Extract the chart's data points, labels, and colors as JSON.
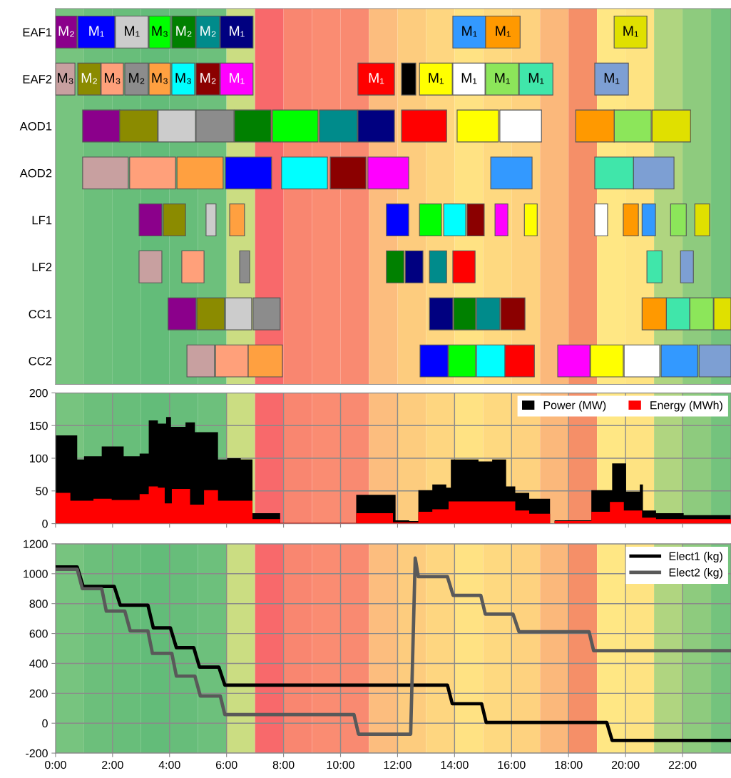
{
  "chart_data": [
    {
      "type": "bar",
      "orientation": "horizontal",
      "tick_labels": "y",
      "xlim": [
        0,
        23.7
      ],
      "categories": [
        "EAF1",
        "EAF2",
        "AOD1",
        "AOD2",
        "LF1",
        "LF2",
        "CC1",
        "CC2"
      ],
      "series": [
        {
          "color": "#8b008b",
          "base": [
            0,
            null,
            0.95,
            null,
            2.93,
            null,
            3.95,
            null
          ],
          "values": [
            0.75,
            null,
            1.3,
            null,
            0.8,
            null,
            0.98,
            null
          ],
          "value_labels": [
            "M₂",
            null,
            null,
            null,
            null,
            null,
            null,
            null
          ]
        },
        {
          "color": "#0000ff",
          "base": [
            0.78,
            null,
            null,
            5.96,
            11.61,
            null,
            null,
            12.79
          ],
          "values": [
            1.3,
            null,
            null,
            1.62,
            0.78,
            null,
            null,
            0.98
          ],
          "value_labels": [
            "M₁",
            null,
            null,
            null,
            null,
            null,
            null,
            null
          ]
        },
        {
          "color": "#cccccc",
          "base": [
            2.1,
            null,
            3.6,
            null,
            5.28,
            null,
            5.96,
            null
          ],
          "values": [
            1.15,
            null,
            1.31,
            null,
            0.35,
            null,
            0.92,
            null
          ],
          "value_labels": [
            "M₁",
            null,
            null,
            null,
            null,
            null,
            null,
            null
          ]
        },
        {
          "color": "#00ff00",
          "base": [
            3.28,
            null,
            7.61,
            null,
            12.77,
            null,
            null,
            13.79
          ],
          "values": [
            0.75,
            null,
            1.6,
            null,
            0.77,
            null,
            null,
            0.95
          ],
          "value_labels": [
            "M₃",
            null,
            null,
            null,
            null,
            null,
            null,
            null
          ]
        },
        {
          "color": "#008000",
          "base": [
            4.08,
            null,
            6.28,
            null,
            null,
            11.61,
            13.97,
            null
          ],
          "values": [
            0.83,
            null,
            1.28,
            null,
            null,
            0.61,
            0.77,
            null
          ],
          "value_labels": [
            "M₂",
            null,
            null,
            null,
            null,
            null,
            null,
            null
          ]
        },
        {
          "color": "#008b8b",
          "base": [
            4.93,
            null,
            9.26,
            null,
            null,
            13.12,
            14.77,
            null
          ],
          "values": [
            0.83,
            null,
            1.33,
            null,
            null,
            0.6,
            0.82,
            null
          ],
          "value_labels": [
            "M₂",
            null,
            null,
            null,
            null,
            null,
            null,
            null
          ]
        },
        {
          "color": "#000080",
          "base": [
            5.78,
            null,
            10.61,
            null,
            null,
            12.27,
            13.12,
            null
          ],
          "values": [
            1.15,
            null,
            1.28,
            null,
            null,
            0.62,
            0.82,
            null
          ],
          "value_labels": [
            "M₁",
            null,
            null,
            null,
            null,
            null,
            null,
            null
          ]
        },
        {
          "color": "#c8a0a0",
          "base": [
            null,
            0,
            null,
            0.95,
            null,
            2.93,
            null,
            4.61
          ],
          "values": [
            null,
            0.68,
            null,
            1.6,
            null,
            0.8,
            null,
            0.97
          ],
          "value_labels": [
            null,
            "M₃",
            null,
            null,
            null,
            null,
            null,
            null
          ]
        },
        {
          "color": "#8b8b00",
          "base": [
            null,
            0.78,
            2.25,
            null,
            3.78,
            null,
            4.96,
            null
          ],
          "values": [
            null,
            0.8,
            1.33,
            null,
            0.78,
            null,
            0.97,
            null
          ],
          "value_labels": [
            null,
            "M₂",
            null,
            null,
            null,
            null,
            null,
            null
          ]
        },
        {
          "color": "#ffa07a",
          "base": [
            null,
            1.6,
            null,
            2.6,
            null,
            4.43,
            null,
            5.61
          ],
          "values": [
            null,
            0.78,
            null,
            1.61,
            null,
            0.78,
            null,
            1.15
          ],
          "value_labels": [
            null,
            "M₃",
            null,
            null,
            null,
            null,
            null,
            null
          ]
        },
        {
          "color": "#8c8c8c",
          "base": [
            null,
            2.43,
            4.93,
            null,
            null,
            6.46,
            6.93,
            null
          ],
          "values": [
            null,
            0.82,
            1.33,
            null,
            null,
            0.35,
            0.95,
            null
          ],
          "value_labels": [
            null,
            "M₂",
            null,
            null,
            null,
            null,
            null,
            null
          ]
        },
        {
          "color": "#ffa040",
          "base": [
            null,
            3.28,
            null,
            4.26,
            6.11,
            null,
            null,
            6.76
          ],
          "values": [
            null,
            0.75,
            null,
            1.62,
            0.52,
            null,
            null,
            1.2
          ],
          "value_labels": [
            null,
            "M₃",
            null,
            null,
            null,
            null,
            null,
            null
          ]
        },
        {
          "color": "#00ffff",
          "base": [
            null,
            4.08,
            null,
            7.93,
            13.62,
            null,
            null,
            14.77
          ],
          "values": [
            null,
            0.8,
            null,
            1.61,
            0.77,
            null,
            null,
            1.0
          ],
          "value_labels": [
            null,
            "M₃",
            null,
            null,
            null,
            null,
            null,
            null
          ]
        },
        {
          "color": "#8b0000",
          "base": [
            null,
            4.93,
            null,
            9.64,
            14.44,
            null,
            15.62,
            null
          ],
          "values": [
            null,
            0.83,
            null,
            1.25,
            0.6,
            null,
            0.85,
            null
          ],
          "value_labels": [
            null,
            "M₂",
            null,
            null,
            null,
            null,
            null,
            null
          ]
        },
        {
          "color": "#ff00ff",
          "base": [
            null,
            5.78,
            null,
            10.96,
            15.42,
            null,
            null,
            17.62
          ],
          "values": [
            null,
            1.15,
            null,
            1.43,
            0.45,
            null,
            null,
            1.13
          ],
          "value_labels": [
            null,
            "M₁",
            null,
            null,
            null,
            null,
            null,
            null
          ]
        },
        {
          "color": "#ff0000",
          "base": [
            null,
            10.61,
            12.14,
            null,
            null,
            13.94,
            null,
            15.77
          ],
          "values": [
            null,
            1.28,
            1.58,
            null,
            null,
            0.78,
            null,
            1.03
          ],
          "value_labels": [
            null,
            "M₁",
            null,
            null,
            null,
            null,
            null,
            null
          ]
        },
        {
          "color": "#000000",
          "base": [
            null,
            12.14,
            null,
            null,
            null,
            null,
            null,
            null
          ],
          "values": [
            null,
            0.5,
            null,
            null,
            null,
            null,
            null,
            null
          ]
        },
        {
          "color": "#ffff00",
          "base": [
            null,
            12.77,
            14.09,
            null,
            16.45,
            null,
            null,
            18.77
          ],
          "values": [
            null,
            1.15,
            1.45,
            null,
            0.45,
            null,
            null,
            1.15
          ],
          "value_labels": [
            null,
            "M₁",
            null,
            null,
            null,
            null,
            null,
            null
          ]
        },
        {
          "color": "#ffffff",
          "base": [
            null,
            13.94,
            15.59,
            null,
            18.92,
            null,
            null,
            19.95
          ],
          "values": [
            null,
            1.13,
            1.46,
            null,
            0.45,
            null,
            null,
            1.25
          ],
          "value_labels": [
            null,
            "M₁",
            null,
            null,
            null,
            null,
            null,
            null
          ]
        },
        {
          "color": "#8ce65a",
          "base": [
            null,
            15.09,
            19.6,
            null,
            21.58,
            null,
            22.25,
            null
          ],
          "values": [
            null,
            1.16,
            1.3,
            null,
            0.55,
            null,
            0.83,
            null
          ],
          "value_labels": [
            null,
            "M₁",
            null,
            null,
            null,
            null,
            null,
            null
          ]
        },
        {
          "color": "#40e6aa",
          "base": [
            null,
            16.27,
            null,
            18.92,
            null,
            20.75,
            21.43,
            null
          ],
          "values": [
            null,
            1.18,
            null,
            1.36,
            null,
            0.53,
            0.82,
            null
          ],
          "value_labels": [
            null,
            "M₁",
            null,
            null,
            null,
            null,
            null,
            null
          ]
        },
        {
          "color": "#7d9fd3",
          "base": [
            null,
            18.92,
            null,
            20.28,
            null,
            21.93,
            null,
            22.58
          ],
          "values": [
            null,
            1.18,
            null,
            1.42,
            null,
            0.45,
            null,
            1.12
          ],
          "value_labels": [
            null,
            "M₁",
            null,
            null,
            null,
            null,
            null,
            null
          ]
        },
        {
          "color": "#3399ff",
          "base": [
            13.94,
            null,
            null,
            15.27,
            20.58,
            null,
            null,
            21.25
          ],
          "values": [
            1.15,
            null,
            null,
            1.45,
            0.47,
            null,
            null,
            1.28
          ],
          "value_labels": [
            "M₁",
            null,
            null,
            null,
            null,
            null,
            null,
            null
          ]
        },
        {
          "color": "#ff9900",
          "base": [
            15.09,
            null,
            18.25,
            null,
            19.92,
            null,
            20.58,
            null
          ],
          "values": [
            1.21,
            null,
            1.35,
            null,
            0.53,
            null,
            0.85,
            null
          ],
          "value_labels": [
            "M₁",
            null,
            null,
            null,
            null,
            null,
            null,
            null
          ]
        },
        {
          "color": "#e0e000",
          "base": [
            19.6,
            null,
            20.93,
            null,
            22.43,
            null,
            23.1,
            null
          ],
          "values": [
            1.15,
            null,
            1.35,
            null,
            0.52,
            null,
            0.6,
            null
          ],
          "value_labels": [
            "M₁",
            null,
            null,
            null,
            null,
            null,
            null,
            null
          ]
        }
      ],
      "bands": [
        {
          "axis": "x",
          "from": 0,
          "to": 1,
          "color": "#77c47f"
        },
        {
          "axis": "x",
          "from": 1,
          "to": 2,
          "color": "#6cbf7b"
        },
        {
          "axis": "x",
          "from": 2,
          "to": 3,
          "color": "#68be7a"
        },
        {
          "axis": "x",
          "from": 3,
          "to": 4,
          "color": "#63bc79"
        },
        {
          "axis": "x",
          "from": 4,
          "to": 5,
          "color": "#67bd7a"
        },
        {
          "axis": "x",
          "from": 5,
          "to": 6,
          "color": "#6dc07c"
        },
        {
          "axis": "x",
          "from": 6,
          "to": 7,
          "color": "#cbdd82"
        },
        {
          "axis": "x",
          "from": 7,
          "to": 8,
          "color": "#f8696b"
        },
        {
          "axis": "x",
          "from": 8,
          "to": 9,
          "color": "#f98670"
        },
        {
          "axis": "x",
          "from": 9,
          "to": 10,
          "color": "#fa8c72"
        },
        {
          "axis": "x",
          "from": 10,
          "to": 11,
          "color": "#f98a71"
        },
        {
          "axis": "x",
          "from": 11,
          "to": 12,
          "color": "#fcbd7e"
        },
        {
          "axis": "x",
          "from": 12,
          "to": 13,
          "color": "#fdcc7e"
        },
        {
          "axis": "x",
          "from": 13,
          "to": 14,
          "color": "#fed680"
        },
        {
          "axis": "x",
          "from": 14,
          "to": 15,
          "color": "#ffe283"
        },
        {
          "axis": "x",
          "from": 15,
          "to": 16,
          "color": "#fed980"
        },
        {
          "axis": "x",
          "from": 16,
          "to": 17,
          "color": "#fed27f"
        },
        {
          "axis": "x",
          "from": 17,
          "to": 18,
          "color": "#fbb87b"
        },
        {
          "axis": "x",
          "from": 18,
          "to": 19,
          "color": "#f58f68"
        },
        {
          "axis": "x",
          "from": 19,
          "to": 20,
          "color": "#ffe784"
        },
        {
          "axis": "x",
          "from": 20,
          "to": 21,
          "color": "#fee382"
        },
        {
          "axis": "x",
          "from": 21,
          "to": 22,
          "color": "#b0d580"
        },
        {
          "axis": "x",
          "from": 22,
          "to": 23,
          "color": "#8ecb7e"
        },
        {
          "axis": "x",
          "from": 23,
          "to": 23.7,
          "color": "#74c37d"
        }
      ]
    },
    {
      "type": "area",
      "tick_labels": "y",
      "grid": true,
      "legend": "top right",
      "xlim": [
        0,
        23.7
      ],
      "ylim": [
        0,
        200
      ],
      "yticks": [
        0,
        50,
        100,
        150,
        200
      ],
      "xticks": [
        {
          "value": 0,
          "label": null
        },
        {
          "value": 2,
          "label": null
        },
        {
          "value": 4,
          "label": null
        },
        {
          "value": 6,
          "label": null
        },
        {
          "value": 8,
          "label": null
        },
        {
          "value": 10,
          "label": null
        },
        {
          "value": 12,
          "label": null
        },
        {
          "value": 14,
          "label": null
        },
        {
          "value": 16,
          "label": null
        },
        {
          "value": 18,
          "label": null
        },
        {
          "value": 20,
          "label": null
        },
        {
          "value": 22,
          "label": null
        }
      ],
      "series": [
        {
          "name": "Power (MW)",
          "color": "#000000",
          "x": [
            0,
            0.76,
            0.76,
            1.0,
            1.0,
            1.62,
            1.62,
            2.39,
            2.39,
            2.95,
            2.95,
            3.27,
            3.27,
            3.59,
            3.59,
            3.88,
            3.88,
            4.05,
            4.05,
            4.56,
            4.56,
            4.89,
            4.89,
            5.7,
            5.7,
            6.02,
            6.02,
            6.5,
            6.5,
            6.91,
            6.91,
            7.88,
            7.88,
            10.55,
            10.55,
            11.93,
            11.93,
            12.41,
            12.41,
            12.73,
            12.73,
            13.22,
            13.22,
            13.71,
            13.71,
            13.87,
            13.87,
            14.84,
            14.84,
            15.32,
            15.32,
            15.81,
            15.81,
            16.13,
            16.13,
            16.62,
            16.62,
            17.35,
            17.35,
            17.51,
            17.51,
            18.8,
            18.8,
            19.53,
            19.53,
            20.02,
            20.02,
            20.5,
            20.5,
            20.61,
            20.61,
            21.07,
            21.07,
            22.04,
            22.04,
            23.7
          ],
          "values": [
            135,
            135,
            98,
            98,
            103,
            103,
            118,
            118,
            103,
            103,
            107,
            107,
            158,
            158,
            153,
            153,
            163,
            163,
            148,
            148,
            155,
            155,
            140,
            140,
            98,
            98,
            100,
            100,
            98,
            98,
            16,
            16,
            1,
            1,
            44,
            44,
            5,
            5,
            4,
            4,
            51,
            51,
            60,
            60,
            55,
            55,
            98,
            98,
            95,
            95,
            98,
            98,
            57,
            57,
            47,
            47,
            38,
            38,
            0,
            0,
            5,
            5,
            51,
            51,
            92,
            92,
            49,
            49,
            60,
            60,
            20,
            20,
            16,
            16,
            13,
            13
          ]
        },
        {
          "name": "Energy (MWh)",
          "color": "#ff0000",
          "x": [
            0,
            0.52,
            0.52,
            1.33,
            1.33,
            1.97,
            1.97,
            2.95,
            2.95,
            3.27,
            3.27,
            3.59,
            3.59,
            3.83,
            3.83,
            4.08,
            4.08,
            4.72,
            4.72,
            5.21,
            5.21,
            5.7,
            5.7,
            6.91,
            6.91,
            7.88,
            7.88,
            10.55,
            10.55,
            11.84,
            11.84,
            12.73,
            12.73,
            13.22,
            13.22,
            13.79,
            13.79,
            16.13,
            16.13,
            16.62,
            16.62,
            17.35,
            17.35,
            17.51,
            17.51,
            18.8,
            18.8,
            19.45,
            19.45,
            19.94,
            19.94,
            20.58,
            20.58,
            21.07,
            21.07,
            23.7
          ],
          "values": [
            47,
            47,
            35,
            35,
            38,
            38,
            36,
            36,
            45,
            45,
            57,
            57,
            55,
            55,
            31,
            31,
            53,
            53,
            29,
            29,
            51,
            51,
            35,
            35,
            7,
            7,
            1,
            1,
            16,
            16,
            2,
            2,
            18,
            18,
            22,
            22,
            34,
            34,
            20,
            20,
            15,
            15,
            0,
            0,
            4,
            4,
            18,
            18,
            33,
            33,
            20,
            20,
            9,
            9,
            7,
            7
          ]
        }
      ],
      "bands": [
        {
          "axis": "x",
          "from": 0,
          "to": 1,
          "color": "#77c47f"
        },
        {
          "axis": "x",
          "from": 1,
          "to": 2,
          "color": "#6cbf7b"
        },
        {
          "axis": "x",
          "from": 2,
          "to": 3,
          "color": "#68be7a"
        },
        {
          "axis": "x",
          "from": 3,
          "to": 4,
          "color": "#63bc79"
        },
        {
          "axis": "x",
          "from": 4,
          "to": 5,
          "color": "#67bd7a"
        },
        {
          "axis": "x",
          "from": 5,
          "to": 6,
          "color": "#6dc07c"
        },
        {
          "axis": "x",
          "from": 6,
          "to": 7,
          "color": "#cbdd82"
        },
        {
          "axis": "x",
          "from": 7,
          "to": 8,
          "color": "#f8696b"
        },
        {
          "axis": "x",
          "from": 8,
          "to": 9,
          "color": "#f98670"
        },
        {
          "axis": "x",
          "from": 9,
          "to": 10,
          "color": "#fa8c72"
        },
        {
          "axis": "x",
          "from": 10,
          "to": 11,
          "color": "#f98a71"
        },
        {
          "axis": "x",
          "from": 11,
          "to": 12,
          "color": "#fcbd7e"
        },
        {
          "axis": "x",
          "from": 12,
          "to": 13,
          "color": "#fdcc7e"
        },
        {
          "axis": "x",
          "from": 13,
          "to": 14,
          "color": "#fed680"
        },
        {
          "axis": "x",
          "from": 14,
          "to": 15,
          "color": "#ffe283"
        },
        {
          "axis": "x",
          "from": 15,
          "to": 16,
          "color": "#fed980"
        },
        {
          "axis": "x",
          "from": 16,
          "to": 17,
          "color": "#fed27f"
        },
        {
          "axis": "x",
          "from": 17,
          "to": 18,
          "color": "#fbb87b"
        },
        {
          "axis": "x",
          "from": 18,
          "to": 19,
          "color": "#f58f68"
        },
        {
          "axis": "x",
          "from": 19,
          "to": 20,
          "color": "#ffe784"
        },
        {
          "axis": "x",
          "from": 20,
          "to": 21,
          "color": "#fee382"
        },
        {
          "axis": "x",
          "from": 21,
          "to": 22,
          "color": "#b0d580"
        },
        {
          "axis": "x",
          "from": 22,
          "to": 23,
          "color": "#8ecb7e"
        },
        {
          "axis": "x",
          "from": 23,
          "to": 23.7,
          "color": "#74c37d"
        }
      ]
    },
    {
      "type": "line",
      "line_style": "solid",
      "grid": true,
      "legend": "top right",
      "xlim": [
        0,
        23.7
      ],
      "ylim": [
        -200,
        1200
      ],
      "yticks": [
        -200,
        0,
        200,
        400,
        600,
        800,
        1000,
        1200
      ],
      "xticks": [
        {
          "value": 0,
          "label": "0:00"
        },
        {
          "value": 2,
          "label": "2:00"
        },
        {
          "value": 4,
          "label": "4:00"
        },
        {
          "value": 6,
          "label": "6:00"
        },
        {
          "value": 8,
          "label": "8:00"
        },
        {
          "value": 10,
          "label": "10:00"
        },
        {
          "value": 12,
          "label": "12:00"
        },
        {
          "value": 14,
          "label": "14:00"
        },
        {
          "value": 16,
          "label": "16:00"
        },
        {
          "value": 18,
          "label": "18:00"
        },
        {
          "value": 20,
          "label": "20:00"
        },
        {
          "value": 22,
          "label": "22:00"
        }
      ],
      "series": [
        {
          "name": "Elect1 (kg)",
          "color": "#000000",
          "x": [
            0,
            0.76,
            0.97,
            2.06,
            2.27,
            3.24,
            3.43,
            4.03,
            4.24,
            4.85,
            5.05,
            5.73,
            5.94,
            13.75,
            13.92,
            14.95,
            15.11,
            19.34,
            19.53,
            23.7
          ],
          "values": [
            1045,
            1045,
            915,
            915,
            790,
            790,
            638,
            638,
            505,
            505,
            375,
            375,
            255,
            255,
            130,
            130,
            5,
            5,
            -115,
            -115
          ]
        },
        {
          "name": "Elect2 (kg)",
          "color": "#595959",
          "x": [
            0,
            0.76,
            0.94,
            1.62,
            1.78,
            2.43,
            2.62,
            3.24,
            3.4,
            4.08,
            4.24,
            4.89,
            5.08,
            5.78,
            5.94,
            10.47,
            10.63,
            12.46,
            12.62,
            12.73,
            13.75,
            13.95,
            14.92,
            15.08,
            16.05,
            16.26,
            18.72,
            18.88,
            23.7
          ],
          "values": [
            1030,
            1030,
            900,
            900,
            750,
            750,
            618,
            618,
            467,
            467,
            315,
            315,
            182,
            182,
            58,
            58,
            -73,
            -73,
            1105,
            980,
            980,
            855,
            855,
            730,
            730,
            612,
            612,
            485,
            485
          ]
        }
      ],
      "bands": [
        {
          "axis": "x",
          "from": 0,
          "to": 1,
          "color": "#77c47f"
        },
        {
          "axis": "x",
          "from": 1,
          "to": 2,
          "color": "#6cbf7b"
        },
        {
          "axis": "x",
          "from": 2,
          "to": 3,
          "color": "#68be7a"
        },
        {
          "axis": "x",
          "from": 3,
          "to": 4,
          "color": "#63bc79"
        },
        {
          "axis": "x",
          "from": 4,
          "to": 5,
          "color": "#67bd7a"
        },
        {
          "axis": "x",
          "from": 5,
          "to": 6,
          "color": "#6dc07c"
        },
        {
          "axis": "x",
          "from": 6,
          "to": 7,
          "color": "#cbdd82"
        },
        {
          "axis": "x",
          "from": 7,
          "to": 8,
          "color": "#f8696b"
        },
        {
          "axis": "x",
          "from": 8,
          "to": 9,
          "color": "#f98670"
        },
        {
          "axis": "x",
          "from": 9,
          "to": 10,
          "color": "#fa8c72"
        },
        {
          "axis": "x",
          "from": 10,
          "to": 11,
          "color": "#f98a71"
        },
        {
          "axis": "x",
          "from": 11,
          "to": 12,
          "color": "#fcbd7e"
        },
        {
          "axis": "x",
          "from": 12,
          "to": 13,
          "color": "#fdcc7e"
        },
        {
          "axis": "x",
          "from": 13,
          "to": 14,
          "color": "#fed680"
        },
        {
          "axis": "x",
          "from": 14,
          "to": 15,
          "color": "#ffe283"
        },
        {
          "axis": "x",
          "from": 15,
          "to": 16,
          "color": "#fed980"
        },
        {
          "axis": "x",
          "from": 16,
          "to": 17,
          "color": "#fed27f"
        },
        {
          "axis": "x",
          "from": 17,
          "to": 18,
          "color": "#fbb87b"
        },
        {
          "axis": "x",
          "from": 18,
          "to": 19,
          "color": "#f58f68"
        },
        {
          "axis": "x",
          "from": 19,
          "to": 20,
          "color": "#ffe784"
        },
        {
          "axis": "x",
          "from": 20,
          "to": 21,
          "color": "#fee382"
        },
        {
          "axis": "x",
          "from": 21,
          "to": 22,
          "color": "#b0d580"
        },
        {
          "axis": "x",
          "from": 22,
          "to": 23,
          "color": "#8ecb7e"
        },
        {
          "axis": "x",
          "from": 23,
          "to": 23.7,
          "color": "#74c37d"
        }
      ]
    }
  ]
}
